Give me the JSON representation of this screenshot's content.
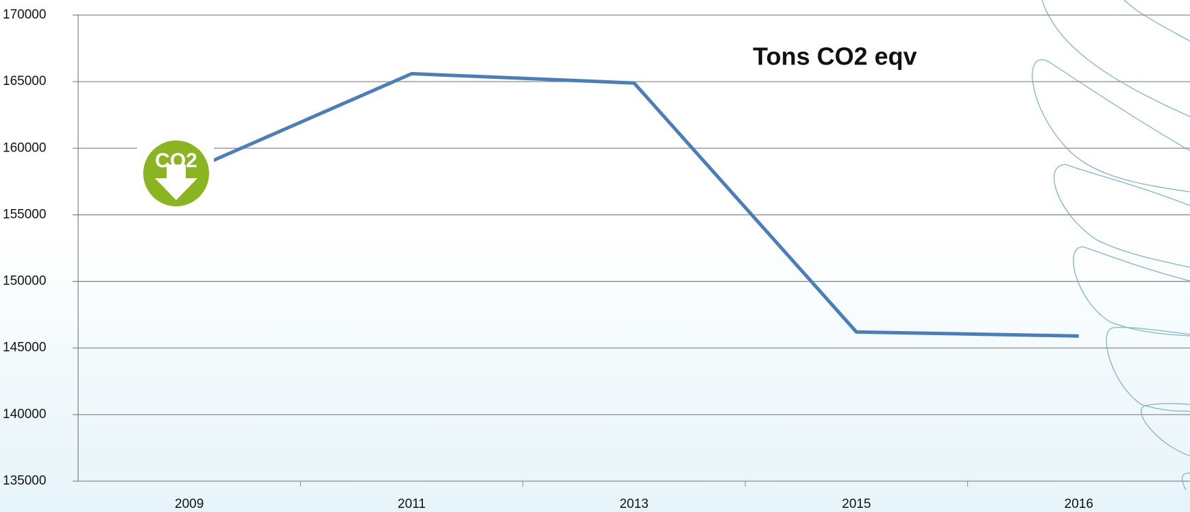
{
  "chart_data": {
    "type": "line",
    "title": "Tons CO2 eqv",
    "icon_text": "CO2",
    "categories": [
      "2009",
      "2011",
      "2013",
      "2015",
      "2016"
    ],
    "series": [
      {
        "name": "Tons CO2 eqv",
        "color": "#4a7ebb",
        "values": [
          158300,
          165600,
          164900,
          146200,
          145900
        ]
      }
    ],
    "ylim": [
      135000,
      170000
    ],
    "yticks": [
      135000,
      140000,
      145000,
      150000,
      155000,
      160000,
      165000,
      170000
    ],
    "grid": true
  }
}
